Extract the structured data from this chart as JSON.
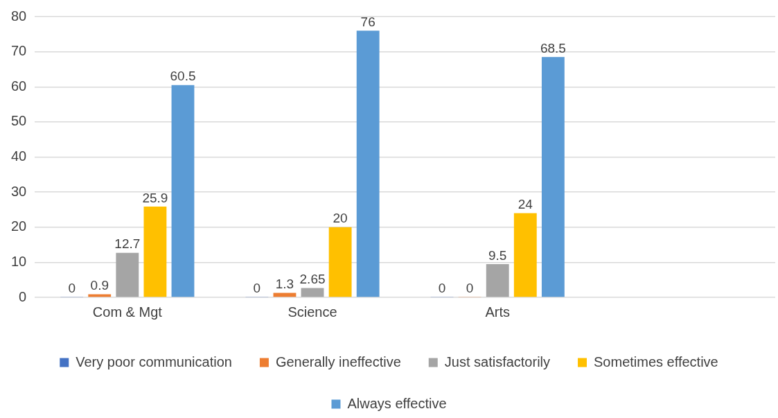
{
  "chart_data": {
    "type": "bar",
    "categories": [
      "Com & Mgt",
      "Science",
      "Arts",
      null
    ],
    "series": [
      {
        "name": "Very poor communication",
        "color": "#4472c4",
        "values": [
          0,
          0,
          0,
          null
        ]
      },
      {
        "name": "Generally ineffective",
        "color": "#ed7d31",
        "values": [
          0.9,
          1.3,
          0,
          null
        ]
      },
      {
        "name": "Just satisfactorily",
        "color": "#a5a5a5",
        "values": [
          12.7,
          2.65,
          9.5,
          null
        ]
      },
      {
        "name": "Sometimes effective",
        "color": "#ffc000",
        "values": [
          25.9,
          20,
          24,
          null
        ]
      },
      {
        "name": "Always effective",
        "color": "#5b9bd5",
        "values": [
          60.5,
          76,
          68.5,
          null
        ]
      }
    ],
    "ylim": [
      0,
      80
    ],
    "yticks": [
      0,
      10,
      20,
      30,
      40,
      50,
      60,
      70,
      80
    ],
    "grid": "y",
    "legend": "bottom",
    "data_labels": true
  }
}
